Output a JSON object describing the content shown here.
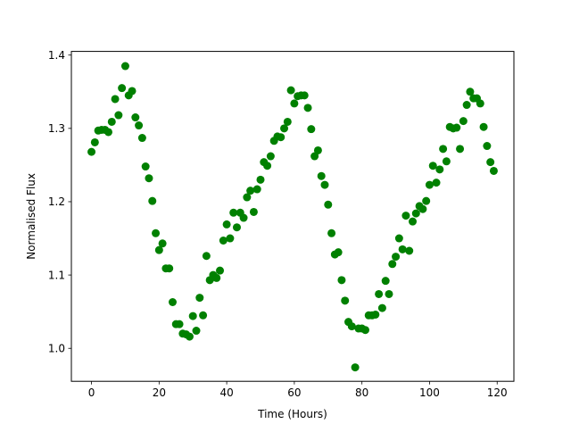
{
  "chart_data": {
    "type": "scatter",
    "title": "",
    "xlabel": "Time (Hours)",
    "ylabel": "Normalised Flux",
    "xlim": [
      -5.95,
      124.95
    ],
    "ylim": [
      0.955,
      1.405
    ],
    "xticks": [
      0,
      20,
      40,
      60,
      80,
      100,
      120
    ],
    "yticks": [
      1.0,
      1.1,
      1.2,
      1.3,
      1.4
    ],
    "xtick_labels": [
      "0",
      "20",
      "40",
      "60",
      "80",
      "100",
      "120"
    ],
    "ytick_labels": [
      "1.0",
      "1.1",
      "1.2",
      "1.3",
      "1.4"
    ],
    "grid": false,
    "marker_color": "#008000",
    "series": [
      {
        "x": [
          0,
          1,
          2,
          3,
          4,
          5,
          6,
          7,
          8,
          9,
          10,
          11,
          12,
          13,
          14,
          15,
          16,
          17,
          18,
          19,
          20,
          21,
          22,
          23,
          24,
          25,
          26,
          27,
          28,
          29,
          30,
          31,
          32,
          33,
          34,
          35,
          36,
          37,
          38,
          39,
          40,
          41,
          42,
          43,
          44,
          45,
          46,
          47,
          48,
          49,
          50,
          51,
          52,
          53,
          54,
          55,
          56,
          57,
          58,
          59,
          60,
          61,
          62,
          63,
          64,
          65,
          66,
          67,
          68,
          69,
          70,
          71,
          72,
          73,
          74,
          75,
          76,
          77,
          78,
          79,
          80,
          81,
          82,
          83,
          84,
          85,
          86,
          87,
          88,
          89,
          90,
          91,
          92,
          93,
          94,
          95,
          96,
          97,
          98,
          99,
          100,
          101,
          102,
          103,
          104,
          105,
          106,
          107,
          108,
          109,
          110,
          111,
          112,
          113,
          114,
          115,
          116,
          117,
          118,
          119
        ],
        "y": [
          1.268,
          1.281,
          1.297,
          1.298,
          1.298,
          1.295,
          1.309,
          1.34,
          1.318,
          1.355,
          1.385,
          1.345,
          1.351,
          1.315,
          1.304,
          1.287,
          1.248,
          1.232,
          1.201,
          1.157,
          1.134,
          1.143,
          1.109,
          1.109,
          1.063,
          1.033,
          1.033,
          1.02,
          1.019,
          1.016,
          1.044,
          1.024,
          1.069,
          1.045,
          1.126,
          1.093,
          1.1,
          1.096,
          1.106,
          1.147,
          1.169,
          1.15,
          1.185,
          1.165,
          1.185,
          1.178,
          1.206,
          1.215,
          1.186,
          1.217,
          1.23,
          1.254,
          1.249,
          1.262,
          1.283,
          1.289,
          1.288,
          1.3,
          1.309,
          1.352,
          1.334,
          1.344,
          1.345,
          1.345,
          1.328,
          1.299,
          1.262,
          1.27,
          1.235,
          1.223,
          1.196,
          1.157,
          1.128,
          1.131,
          1.093,
          1.065,
          1.036,
          1.03,
          0.974,
          1.027,
          1.027,
          1.025,
          1.045,
          1.045,
          1.046,
          1.074,
          1.055,
          1.092,
          1.074,
          1.115,
          1.125,
          1.15,
          1.135,
          1.181,
          1.133,
          1.173,
          1.184,
          1.194,
          1.19,
          1.201,
          1.223,
          1.249,
          1.226,
          1.244,
          1.272,
          1.255,
          1.302,
          1.3,
          1.301,
          1.272,
          1.31,
          1.332,
          1.35,
          1.341,
          1.341,
          1.334,
          1.302,
          1.276,
          1.254,
          1.242
        ]
      }
    ]
  }
}
